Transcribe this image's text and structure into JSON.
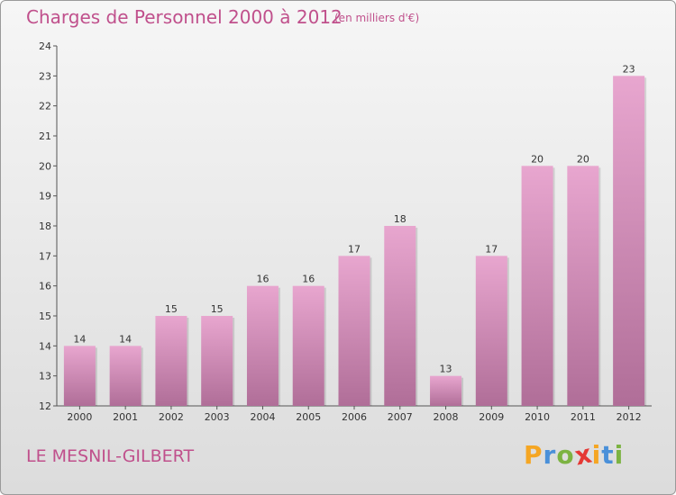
{
  "title": "Charges de Personnel 2000 à 2012",
  "subtitle": "(en milliers d'€)",
  "commune": "LE MESNIL-GILBERT",
  "logo": {
    "letters": [
      "P",
      "r",
      "o",
      "x",
      "i",
      "t",
      "i"
    ],
    "colors": [
      "#f5a623",
      "#4a90d9",
      "#7cb342",
      "#e53935",
      "#f5a623",
      "#4a90d9",
      "#7cb342"
    ]
  },
  "colors": {
    "accent": "#c0508c",
    "bar_top": "#e8a6cf",
    "bar_bottom": "#b06e98"
  },
  "chart_data": {
    "type": "bar",
    "categories": [
      "2000",
      "2001",
      "2002",
      "2003",
      "2004",
      "2005",
      "2006",
      "2007",
      "2008",
      "2009",
      "2010",
      "2011",
      "2012"
    ],
    "values": [
      14,
      14,
      15,
      15,
      16,
      16,
      17,
      18,
      13,
      17,
      20,
      20,
      23
    ],
    "title": "Charges de Personnel 2000 à 2012",
    "ylim": [
      12,
      24
    ],
    "yticks": [
      12,
      13,
      14,
      15,
      16,
      17,
      18,
      19,
      20,
      21,
      22,
      23,
      24
    ],
    "grid": false,
    "legend": "none"
  }
}
